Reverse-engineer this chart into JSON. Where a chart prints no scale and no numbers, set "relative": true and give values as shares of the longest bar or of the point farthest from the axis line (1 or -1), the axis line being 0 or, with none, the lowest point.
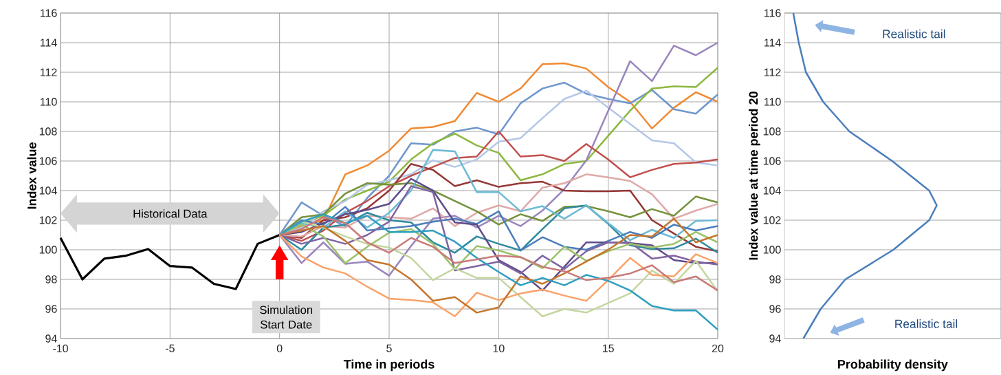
{
  "chart_data": [
    {
      "type": "line",
      "xlabel": "Time in periods",
      "ylabel": "Index value",
      "xlim": [
        -10,
        20
      ],
      "ylim": [
        94,
        116
      ],
      "xticks": [
        -10,
        -5,
        0,
        5,
        10,
        15,
        20
      ],
      "yticks": [
        94,
        96,
        98,
        100,
        102,
        104,
        106,
        108,
        110,
        112,
        114,
        116
      ],
      "grid": true,
      "annotations": [
        "Historical Data",
        "Simulation Start Date"
      ],
      "series": [
        {
          "color": "#000000",
          "x": [
            -10,
            -9,
            -8,
            -7,
            -6,
            -5,
            -4,
            -3,
            -2,
            -1,
            0
          ],
          "values": [
            100.8,
            98,
            99.4,
            99.6,
            100.05,
            98.9,
            98.8,
            97.7,
            97.35,
            100.4,
            101
          ]
        },
        {
          "color": "#f08a33",
          "x": [
            0,
            1,
            2,
            3,
            4,
            5,
            6,
            7,
            8,
            9,
            10,
            11,
            12,
            13,
            14,
            15,
            16,
            17,
            18,
            19,
            20
          ],
          "values": [
            101,
            101.6,
            102,
            105.1,
            105.7,
            106.7,
            108.2,
            108.3,
            108.7,
            110.6,
            110,
            110.9,
            112.55,
            112.6,
            112.25,
            111,
            110,
            108.2,
            109.6,
            110.65,
            110
          ]
        },
        {
          "color": "#6f97cd",
          "x": [
            0,
            1,
            2,
            3,
            4,
            5,
            6,
            7,
            8,
            9,
            10,
            11,
            12,
            13,
            14,
            15,
            16,
            17,
            18,
            19,
            20
          ],
          "values": [
            101,
            103.2,
            102.3,
            101.6,
            103.5,
            105,
            107.2,
            107.1,
            108,
            108.25,
            107.8,
            109.9,
            110.9,
            111.3,
            110.55,
            110.2,
            109.9,
            110.8,
            109.5,
            109.2,
            110.5
          ]
        },
        {
          "color": "#8db83f",
          "x": [
            0,
            1,
            2,
            3,
            4,
            5,
            6,
            7,
            8,
            9,
            10,
            11,
            12,
            13,
            14,
            15,
            16,
            17,
            18,
            19,
            20
          ],
          "values": [
            101,
            101.8,
            102.3,
            103.4,
            104,
            104.6,
            106.1,
            107.2,
            107.85,
            107.05,
            106.55,
            104.7,
            105.1,
            105.8,
            106,
            107.7,
            109.4,
            110.9,
            111.05,
            111,
            112.3
          ]
        },
        {
          "color": "#b4c7e7",
          "x": [
            0,
            1,
            2,
            3,
            4,
            5,
            6,
            7,
            8,
            9,
            10,
            11,
            12,
            13,
            14,
            15,
            16,
            17,
            18,
            19,
            20
          ],
          "values": [
            101,
            101.5,
            102.6,
            103.3,
            104.4,
            104.7,
            105.1,
            106.05,
            105.6,
            106.1,
            107.3,
            107.55,
            108.9,
            110.2,
            110.75,
            109.6,
            108.5,
            107.4,
            107.2,
            105.9,
            105.7
          ]
        },
        {
          "color": "#9a85bd",
          "x": [
            0,
            1,
            2,
            3,
            4,
            5,
            6,
            7,
            8,
            9,
            10,
            11,
            12,
            13,
            14,
            15,
            16,
            17,
            18,
            19,
            20
          ],
          "values": [
            101,
            99.1,
            100.5,
            99.05,
            99.2,
            98.25,
            100.25,
            102.1,
            102.3,
            101.5,
            102.3,
            101.6,
            102.65,
            104.1,
            106.05,
            109.4,
            112.75,
            111.4,
            113.8,
            113.15,
            114
          ]
        },
        {
          "color": "#c0504d",
          "x": [
            0,
            1,
            2,
            3,
            4,
            5,
            6,
            7,
            8,
            9,
            10,
            11,
            12,
            13,
            14,
            15,
            16,
            17,
            18,
            19,
            20
          ],
          "values": [
            101,
            100.6,
            101.3,
            102.5,
            103.3,
            104.3,
            105,
            105.6,
            106.2,
            106.3,
            108,
            106.3,
            106.4,
            106,
            107.15,
            106.1,
            104.9,
            105.4,
            105.8,
            105.9,
            106.1
          ]
        },
        {
          "color": "#953735",
          "x": [
            0,
            1,
            2,
            3,
            4,
            5,
            6,
            7,
            8,
            9,
            10,
            11,
            12,
            13,
            14,
            15,
            16,
            17,
            18,
            19,
            20
          ],
          "values": [
            101,
            100.8,
            102,
            102.2,
            102.8,
            104,
            105.8,
            105.4,
            104.3,
            104.7,
            104.25,
            104.5,
            104.6,
            104,
            103.95,
            103.95,
            104,
            102,
            101.1,
            100.2,
            99.9
          ]
        },
        {
          "color": "#dfa9a8",
          "x": [
            0,
            1,
            2,
            3,
            4,
            5,
            6,
            7,
            8,
            9,
            10,
            11,
            12,
            13,
            14,
            15,
            16,
            17,
            18,
            19,
            20
          ],
          "values": [
            101,
            100.9,
            101.6,
            101.5,
            102.3,
            102.2,
            102.1,
            102.8,
            101.6,
            102.5,
            103,
            102.6,
            104.2,
            104.5,
            105.1,
            104.9,
            104.65,
            103.75,
            102.1,
            102.65,
            103.1
          ]
        },
        {
          "color": "#76923c",
          "x": [
            0,
            1,
            2,
            3,
            4,
            5,
            6,
            7,
            8,
            9,
            10,
            11,
            12,
            13,
            14,
            15,
            16,
            17,
            18,
            19,
            20
          ],
          "values": [
            101,
            102.2,
            102.4,
            103.8,
            104.5,
            104.4,
            104.5,
            104,
            103.3,
            102.6,
            101.7,
            102.4,
            101.95,
            102.9,
            102.95,
            102.6,
            102.2,
            102.75,
            102.3,
            103.6,
            103.2
          ]
        },
        {
          "color": "#2e8b9e",
          "x": [
            0,
            1,
            2,
            3,
            4,
            5,
            6,
            7,
            8,
            9,
            10,
            11,
            12,
            13,
            14,
            15,
            16,
            17,
            18,
            19,
            20
          ],
          "values": [
            101,
            100,
            101.5,
            101.7,
            102.5,
            102,
            101.85,
            100.5,
            99.8,
            100.9,
            100.4,
            99.95,
            101.4,
            102.8,
            103,
            101.75,
            100.3,
            100.05,
            100.1,
            100.75,
            99.8
          ]
        },
        {
          "color": "#6bbad6",
          "x": [
            0,
            1,
            2,
            3,
            4,
            5,
            6,
            7,
            8,
            9,
            10,
            11,
            12,
            13,
            14,
            15,
            16,
            17,
            18,
            19,
            20
          ],
          "values": [
            101,
            101.8,
            101.5,
            102.6,
            101.5,
            102.5,
            104,
            106.75,
            106.65,
            103.9,
            103.9,
            102.6,
            102.95,
            102.1,
            103,
            101.8,
            100.65,
            101.35,
            100.8,
            101.95,
            102
          ]
        },
        {
          "color": "#4a7ebb",
          "x": [
            0,
            1,
            2,
            3,
            4,
            5,
            6,
            7,
            8,
            9,
            10,
            11,
            12,
            13,
            14,
            15,
            16,
            17,
            18,
            19,
            20
          ],
          "values": [
            101,
            102,
            101.7,
            102.9,
            101.3,
            101.45,
            101.6,
            101.9,
            102.1,
            101.75,
            102.6,
            99.95,
            100.85,
            100.2,
            100,
            100.6,
            101.2,
            100.8,
            101.7,
            101.3,
            101.6
          ]
        },
        {
          "color": "#5f4b8b",
          "x": [
            0,
            1,
            2,
            3,
            4,
            5,
            6,
            7,
            8,
            9,
            10,
            11,
            12,
            13,
            14,
            15,
            16,
            17,
            18,
            19,
            20
          ],
          "values": [
            101,
            101.2,
            101.8,
            102.4,
            102.7,
            103.1,
            104.8,
            104,
            101.85,
            101.7,
            99.3,
            98.5,
            97.25,
            98.85,
            100.5,
            100.5,
            100.45,
            100.3,
            99.3,
            99.1,
            99.1
          ]
        },
        {
          "color": "#8064a2",
          "x": [
            0,
            1,
            2,
            3,
            4,
            5,
            6,
            7,
            8,
            9,
            10,
            11,
            12,
            13,
            14,
            15,
            16,
            17,
            18,
            19,
            20
          ],
          "values": [
            101,
            100.4,
            100.8,
            100.4,
            101,
            101.9,
            104.3,
            103.9,
            98.6,
            98.9,
            99.2,
            98.4,
            99.6,
            98.7,
            99.9,
            100.5,
            100.5,
            99.4,
            99.6,
            99.2,
            99
          ]
        },
        {
          "color": "#9cc26a",
          "x": [
            0,
            1,
            2,
            3,
            4,
            5,
            6,
            7,
            8,
            9,
            10,
            11,
            12,
            13,
            14,
            15,
            16,
            17,
            18,
            19,
            20
          ],
          "values": [
            101,
            101.7,
            100.9,
            99.1,
            100.2,
            101.15,
            101.4,
            100.4,
            98.7,
            100.25,
            99.95,
            99.5,
            98.75,
            100.2,
            99.25,
            99.9,
            100.4,
            100.15,
            100.4,
            101.2,
            100.5
          ]
        },
        {
          "color": "#c4d6a0",
          "x": [
            0,
            1,
            2,
            3,
            4,
            5,
            6,
            7,
            8,
            9,
            10,
            11,
            12,
            13,
            14,
            15,
            16,
            17,
            18,
            19,
            20
          ],
          "values": [
            101,
            101.9,
            101.5,
            100.9,
            100.4,
            100.15,
            99.45,
            97.95,
            98.75,
            98.1,
            98.1,
            96.8,
            95.5,
            96,
            95.75,
            96.4,
            97.05,
            98.6,
            97.7,
            99.25,
            97.2
          ]
        },
        {
          "color": "#f9a36a",
          "x": [
            0,
            1,
            2,
            3,
            4,
            5,
            6,
            7,
            8,
            9,
            10,
            11,
            12,
            13,
            14,
            15,
            16,
            17,
            18,
            19,
            20
          ],
          "values": [
            101,
            99.55,
            98.8,
            98.4,
            97.5,
            96.7,
            96.6,
            96.45,
            95.5,
            97.1,
            96.6,
            97.05,
            97.3,
            96.9,
            96.55,
            97.95,
            99.45,
            98.3,
            98.2,
            99.7,
            99.1
          ]
        },
        {
          "color": "#c5762e",
          "x": [
            0,
            1,
            2,
            3,
            4,
            5,
            6,
            7,
            8,
            9,
            10,
            11,
            12,
            13,
            14,
            15,
            16,
            17,
            18,
            19,
            20
          ],
          "values": [
            101,
            101.3,
            101.6,
            100.6,
            99.3,
            99,
            98,
            96.55,
            96.8,
            95.75,
            96.1,
            98.2,
            97.7,
            98.4,
            99.2,
            100,
            101,
            100.9,
            102.1,
            100.5,
            101
          ]
        },
        {
          "color": "#2e9fc1",
          "x": [
            0,
            1,
            2,
            3,
            4,
            5,
            6,
            7,
            8,
            9,
            10,
            11,
            12,
            13,
            14,
            15,
            16,
            17,
            18,
            19,
            20
          ],
          "values": [
            101,
            101.9,
            102.4,
            101.8,
            102.3,
            101.2,
            101.2,
            101.3,
            100.55,
            99.45,
            98.5,
            97.6,
            98.1,
            97.6,
            98.3,
            97.9,
            97.25,
            96.2,
            95.9,
            95.9,
            94.6
          ]
        },
        {
          "color": "#c97b79",
          "x": [
            0,
            1,
            2,
            3,
            4,
            5,
            6,
            7,
            8,
            9,
            10,
            11,
            12,
            13,
            14,
            15,
            16,
            17,
            18,
            19,
            20
          ],
          "values": [
            101,
            101.4,
            102.2,
            101.8,
            100.5,
            99.8,
            100.8,
            100.2,
            99.1,
            99.35,
            99.6,
            99.5,
            98.85,
            98.55,
            97.95,
            98.1,
            98.4,
            98.95,
            97.8,
            98.2,
            97.25
          ]
        }
      ]
    },
    {
      "type": "line",
      "xlabel": "Probability density",
      "ylabel": "Index value at time period 20",
      "relative": true,
      "orientation": "horizontal",
      "ylim": [
        94,
        116
      ],
      "yticks": [
        94,
        96,
        98,
        100,
        102,
        104,
        106,
        108,
        110,
        112,
        114,
        116
      ],
      "grid": "y",
      "tick_labels": "y",
      "annotations": [
        "Realistic tail",
        "Realistic tail"
      ],
      "series": [
        {
          "color": "#4a7ebb",
          "x": [
            94,
            96,
            98,
            100,
            102,
            103,
            104,
            106,
            108,
            110,
            112,
            114,
            116
          ],
          "values": [
            0.124,
            0.238,
            0.4,
            0.715,
            0.95,
            1.0,
            0.95,
            0.707,
            0.426,
            0.254,
            0.141,
            0.094,
            0.058
          ]
        }
      ]
    }
  ]
}
